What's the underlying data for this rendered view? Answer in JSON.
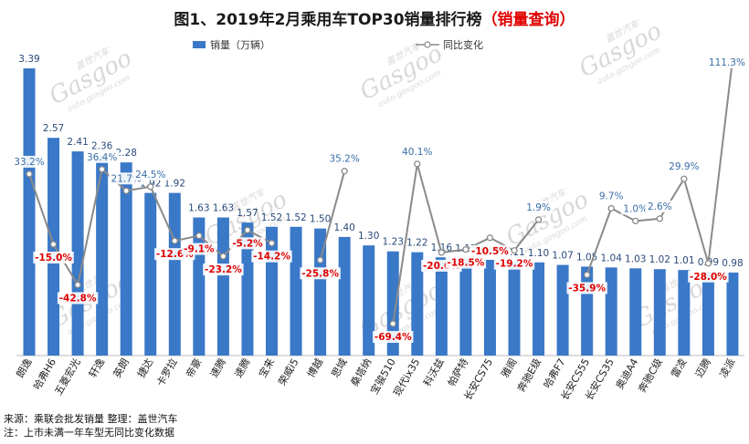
{
  "chart_data": {
    "type": "bar",
    "title_main": "图1、2019年2月乘用车TOP30销量排行榜",
    "title_link": "（销量查询）",
    "legend": {
      "bar_series": "销量（万辆）",
      "line_series": "同比变化",
      "placement": "top"
    },
    "categories": [
      "朗逸",
      "哈弗H6",
      "五菱宏光",
      "轩逸",
      "英朗",
      "捷达",
      "卡罗拉",
      "帝豪",
      "速腾",
      "速腾",
      "宝来",
      "荣威i5",
      "博越",
      "思域",
      "桑塔纳",
      "宝骏510",
      "现代ix35",
      "科沃兹",
      "帕萨特",
      "长安CS75",
      "雅阁",
      "奔驰E级",
      "哈弗F7",
      "长安CS55",
      "长安CS35",
      "奥迪A4",
      "奔驰C级",
      "雷凌",
      "迈腾",
      "凌派"
    ],
    "series": [
      {
        "name": "销量（万辆）",
        "type": "bar",
        "values": [
          3.39,
          2.57,
          2.41,
          2.36,
          2.28,
          1.92,
          1.92,
          1.63,
          1.63,
          1.57,
          1.52,
          1.52,
          1.5,
          1.4,
          1.3,
          1.23,
          1.22,
          1.16,
          1.15,
          1.13,
          1.11,
          1.1,
          1.07,
          1.05,
          1.04,
          1.03,
          1.02,
          1.01,
          0.99,
          0.98
        ]
      },
      {
        "name": "同比变化",
        "type": "line",
        "values": [
          33.2,
          -15.0,
          -42.8,
          36.4,
          21.7,
          24.5,
          -12.6,
          -9.1,
          -23.2,
          -5.2,
          -14.2,
          null,
          -25.8,
          35.2,
          null,
          -69.4,
          40.1,
          -20.6,
          -18.5,
          -10.5,
          -19.2,
          1.9,
          null,
          -35.9,
          9.7,
          1.0,
          2.6,
          29.9,
          -28.0,
          111.3
        ]
      }
    ],
    "bar_labels": [
      "3.39",
      "2.57",
      "2.41",
      "2.36",
      "2.28",
      "1.92",
      "1.92",
      "1.63",
      "1.63",
      "1.57",
      "1.52",
      "1.52",
      "1.50",
      "1.40",
      "1.30",
      "1.23",
      "1.22",
      "1.16",
      "1.15",
      "1.13",
      "1.11",
      "1.10",
      "1.07",
      "1.05",
      "1.04",
      "1.03",
      "1.02",
      "1.01",
      "0.99",
      "0.98"
    ],
    "yoy_labels": [
      "33.2%",
      "-15.0%",
      "-42.8%",
      "36.4%",
      "21.7%",
      "24.5%",
      "-12.6%",
      "-9.1%",
      "-23.2%",
      "-5.2%",
      "-14.2%",
      "",
      "-25.8%",
      "35.2%",
      "",
      "-69.4%",
      "40.1%",
      "-20.6%",
      "-18.5%",
      "-10.5%",
      "-19.2%",
      "1.9%",
      "",
      "-35.9%",
      "9.7%",
      "1.0%",
      "2.6%",
      "29.9%",
      "-28.0%",
      "111.3%"
    ],
    "ylim_bar": [
      0,
      3.6
    ],
    "ylim_line": [
      -80,
      115
    ],
    "grid": false,
    "colors": {
      "bar": "#3a78c8",
      "line": "#8a8a8a",
      "negative_label": "#e00000",
      "positive_label": "#3a6ea8",
      "title_link": "#e00000"
    },
    "footnote_source": "来源：乘联会批发销量  整理：盖世汽车",
    "footnote_note": "注：上市未满一年车型无同比变化数据"
  },
  "watermark": {
    "brand": "Gasgoo",
    "cn": "盖世汽车",
    "url": "auto.gasgoo.com"
  }
}
